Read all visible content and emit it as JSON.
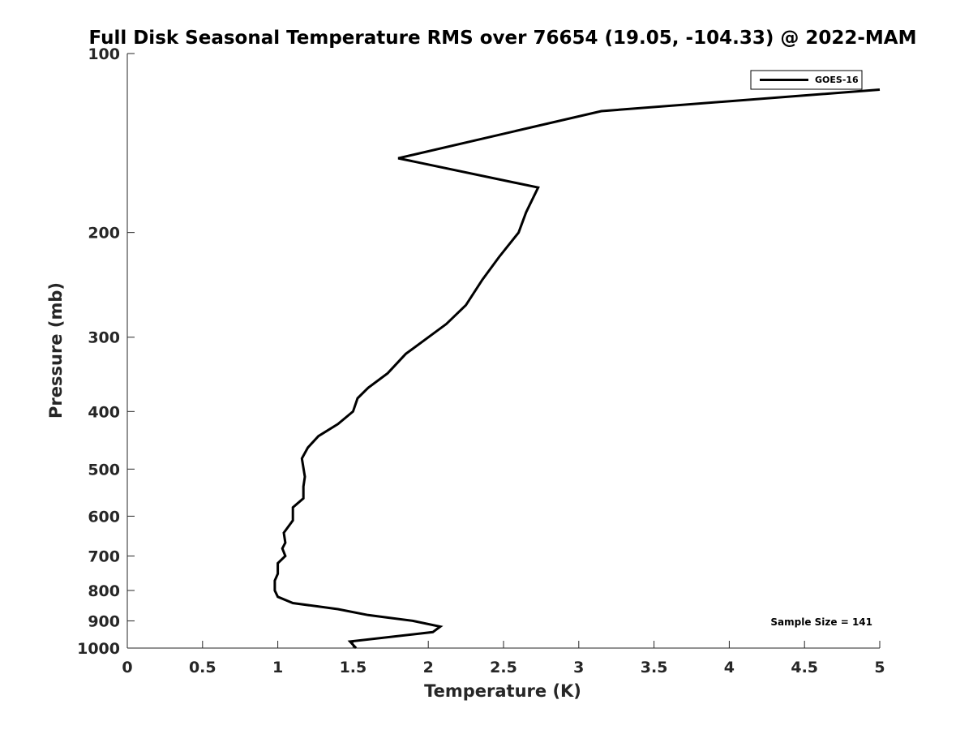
{
  "chart_data": {
    "type": "line",
    "title": "Full Disk Seasonal Temperature RMS over 76654 (19.05, -104.33) @ 2022-MAM",
    "xlabel": "Temperature (K)",
    "ylabel": "Pressure (mb)",
    "xlim": [
      0,
      5
    ],
    "ylim": [
      100,
      1000
    ],
    "y_scale": "log",
    "y_reversed": true,
    "x_ticks": [
      "0",
      "0.5",
      "1",
      "1.5",
      "2",
      "2.5",
      "3",
      "3.5",
      "4",
      "4.5",
      "5"
    ],
    "y_ticks": [
      "100",
      "200",
      "300",
      "400",
      "500",
      "600",
      "700",
      "800",
      "900",
      "1000"
    ],
    "grid": false,
    "legend_position": "top-right",
    "series": [
      {
        "name": "GOES-16",
        "color": "#000000",
        "x": [
          5.0,
          3.15,
          1.8,
          2.73,
          2.65,
          2.6,
          2.47,
          2.36,
          2.25,
          2.12,
          1.85,
          1.73,
          1.6,
          1.53,
          1.5,
          1.4,
          1.27,
          1.2,
          1.16,
          1.18,
          1.17,
          1.17,
          1.1,
          1.1,
          1.04,
          1.05,
          1.03,
          1.05,
          1.0,
          1.0,
          0.98,
          0.98,
          1.0,
          1.1,
          1.4,
          1.6,
          1.9,
          2.08,
          2.03,
          1.48,
          1.52
        ],
        "y": [
          115,
          125,
          150,
          168,
          185,
          200,
          220,
          240,
          265,
          285,
          320,
          345,
          365,
          380,
          400,
          420,
          440,
          460,
          480,
          515,
          535,
          560,
          580,
          610,
          640,
          665,
          680,
          700,
          720,
          750,
          770,
          800,
          820,
          840,
          860,
          880,
          900,
          920,
          940,
          975,
          1000
        ]
      }
    ],
    "annotations": [
      "Sample Size = 141"
    ]
  }
}
